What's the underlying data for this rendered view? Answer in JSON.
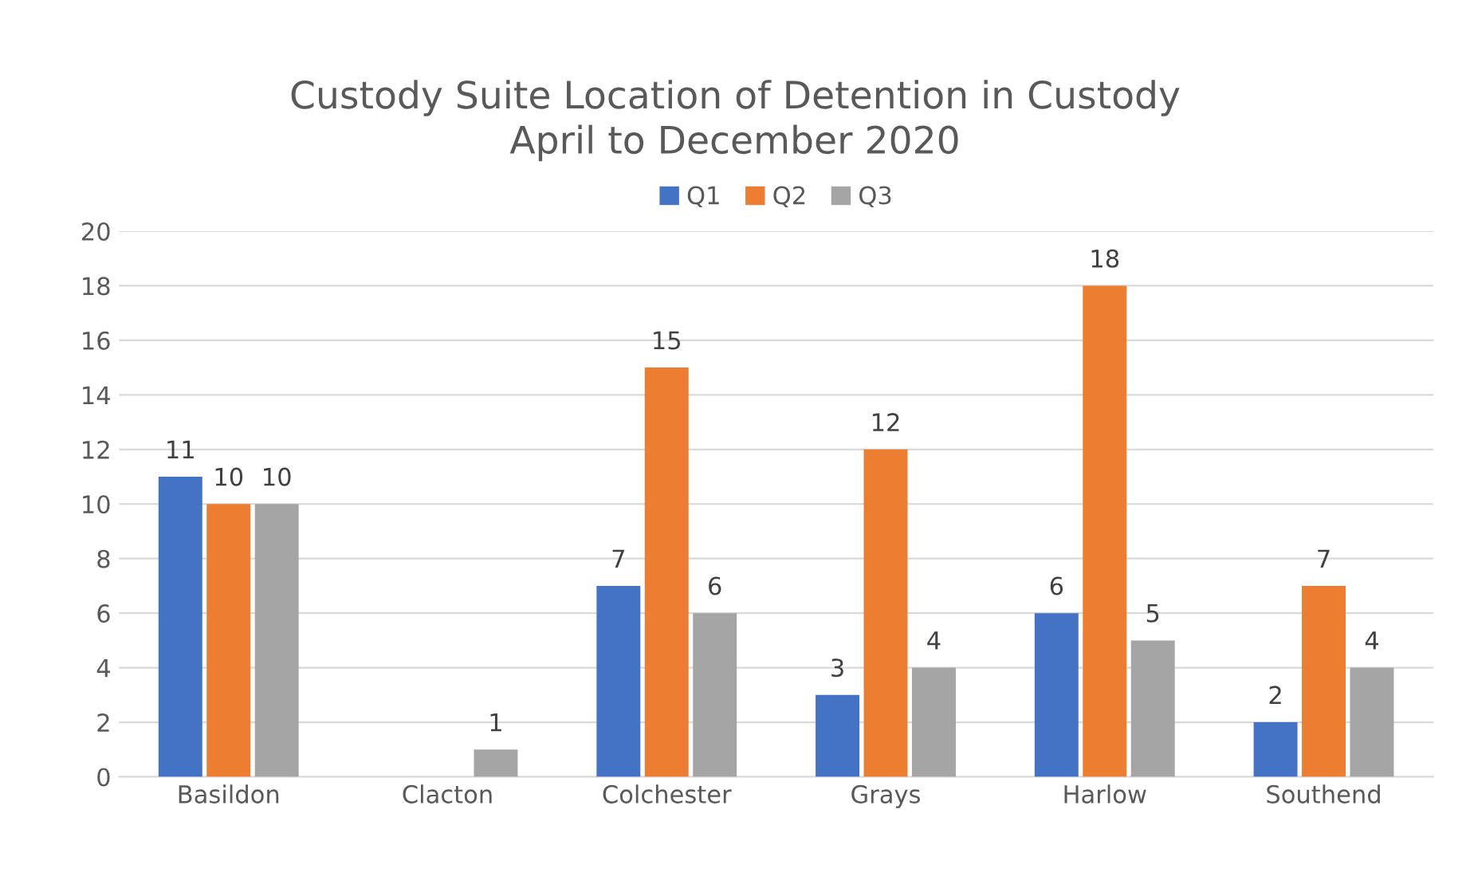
{
  "chart_data": {
    "type": "bar",
    "title": "Custody Suite Location of Detention in Custody\nApril to December 2020",
    "categories": [
      "Basildon",
      "Clacton",
      "Colchester",
      "Grays",
      "Harlow",
      "Southend"
    ],
    "series": [
      {
        "name": "Q1",
        "color": "#4472c4",
        "values": [
          11,
          null,
          7,
          3,
          6,
          2
        ]
      },
      {
        "name": "Q2",
        "color": "#ed7d31",
        "values": [
          10,
          null,
          15,
          12,
          18,
          7
        ]
      },
      {
        "name": "Q3",
        "color": "#a5a5a5",
        "values": [
          10,
          1,
          6,
          4,
          5,
          4
        ]
      }
    ],
    "ylim": [
      0,
      20
    ],
    "yticks": [
      0,
      2,
      4,
      6,
      8,
      10,
      12,
      14,
      16,
      18,
      20
    ],
    "grid": "y",
    "legend": "top",
    "data_labels": true
  }
}
